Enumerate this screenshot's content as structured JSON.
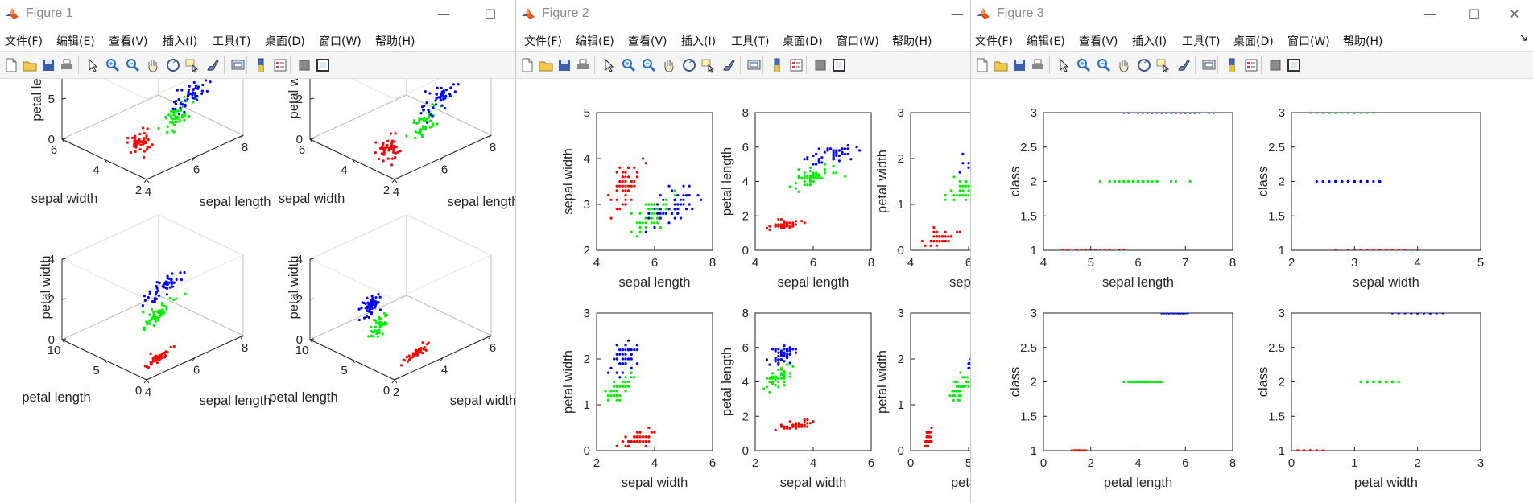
{
  "colors": {
    "setosa": "#ff0000",
    "versicolor": "#00ee00",
    "virginica": "#0000ff",
    "axis": "#222222",
    "box": "#bcbcbc"
  },
  "menu_labels": [
    "文件(F)",
    "编辑(E)",
    "查看(V)",
    "插入(I)",
    "工具(T)",
    "桌面(D)",
    "窗口(W)",
    "帮助(H)"
  ],
  "toolbar_icons": [
    "new-file-icon",
    "open-file-icon",
    "save-icon",
    "print-icon",
    "pointer-icon",
    "zoom-in-icon",
    "zoom-out-icon",
    "pan-icon",
    "rotate-3d-icon",
    "data-cursor-icon",
    "brush-icon",
    "link-plot-icon",
    "colorbar-icon",
    "legend-icon",
    "hide-plot-tools-icon",
    "show-plot-tools-icon"
  ],
  "windows": [
    {
      "title": "Figure 1",
      "controls": [
        "—",
        "☐"
      ],
      "plots": [
        {
          "type": "scatter3",
          "xlabel": "sepal length",
          "ylabel": "sepal width",
          "zlabel": "petal length",
          "xticks": [
            "4",
            "6",
            "8"
          ],
          "yticks": [
            "2",
            "4",
            "6"
          ],
          "zticks": [
            "0",
            "5",
            "10"
          ],
          "zvar": "pl"
        },
        {
          "type": "scatter3",
          "xlabel": "sepal length",
          "ylabel": "sepal width",
          "zlabel": "petal width",
          "xticks": [
            "4",
            "6",
            "8"
          ],
          "yticks": [
            "2",
            "4",
            "6"
          ],
          "zticks": [
            "0",
            "2",
            "4"
          ],
          "zvar": "pw"
        },
        {
          "type": "scatter3",
          "xlabel": "sepal length",
          "ylabel": "petal length",
          "zlabel": "petal width",
          "xticks": [
            "4",
            "6",
            "8"
          ],
          "yticks": [
            "0",
            "5",
            "10"
          ],
          "zticks": [
            "0",
            "2",
            "4"
          ],
          "zvar": "pw"
        },
        {
          "type": "scatter3",
          "xlabel": "sepal width",
          "ylabel": "petal length",
          "zlabel": "petal width",
          "xticks": [
            "2",
            "4",
            "6"
          ],
          "yticks": [
            "0",
            "5",
            "10"
          ],
          "zticks": [
            "0",
            "2",
            "4"
          ],
          "zvar": "pw"
        }
      ]
    },
    {
      "title": "Figure 2",
      "controls": [
        "—"
      ],
      "plots": [
        {
          "xlabel": "sepal length",
          "ylabel": "sepal width",
          "xticks": [
            "4",
            "6",
            "8"
          ],
          "yticks": [
            "2",
            "3",
            "4",
            "5"
          ],
          "xlim": [
            4,
            8
          ],
          "ylim": [
            2,
            5
          ]
        },
        {
          "xlabel": "sepal length",
          "ylabel": "petal length",
          "xticks": [
            "4",
            "6",
            "8"
          ],
          "yticks": [
            "0",
            "2",
            "4",
            "6",
            "8"
          ],
          "xlim": [
            4,
            8
          ],
          "ylim": [
            0,
            8
          ]
        },
        {
          "xlabel": "sepal l",
          "ylabel": "petal width",
          "xticks": [
            "4",
            "6"
          ],
          "yticks": [
            "0",
            "1",
            "2",
            "3"
          ],
          "xlim": [
            4,
            8
          ],
          "ylim": [
            0,
            3
          ]
        },
        {
          "xlabel": "sepal width",
          "ylabel": "petal width",
          "xticks": [
            "2",
            "4",
            "6"
          ],
          "yticks": [
            "0",
            "1",
            "2",
            "3"
          ],
          "xlim": [
            2,
            6
          ],
          "ylim": [
            0,
            3
          ]
        },
        {
          "xlabel": "sepal width",
          "ylabel": "petal length",
          "xticks": [
            "2",
            "4",
            "6"
          ],
          "yticks": [
            "0",
            "2",
            "4",
            "6",
            "8"
          ],
          "xlim": [
            2,
            6
          ],
          "ylim": [
            0,
            8
          ]
        },
        {
          "xlabel": "petal l",
          "ylabel": "petal width",
          "xticks": [
            "0",
            "5"
          ],
          "yticks": [
            "0",
            "1",
            "2",
            "3"
          ],
          "xlim": [
            0,
            10
          ],
          "ylim": [
            0,
            3
          ]
        }
      ]
    },
    {
      "title": "Figure 3",
      "controls": [
        "—",
        "☐",
        "✕"
      ],
      "dock_arrow": "↘",
      "plots": [
        {
          "xlabel": "sepal length",
          "ylabel": "class",
          "xticks": [
            "4",
            "5",
            "6",
            "7",
            "8"
          ],
          "yticks": [
            "1",
            "1.5",
            "2",
            "2.5",
            "3"
          ],
          "xlim": [
            4,
            8
          ],
          "ylim": [
            1,
            3
          ]
        },
        {
          "xlabel": "sepal width",
          "ylabel": "class",
          "xticks": [
            "2",
            "3",
            "4",
            "5"
          ],
          "yticks": [
            "1",
            "1.5",
            "2",
            "2.5",
            "3"
          ],
          "xlim": [
            2,
            5
          ],
          "ylim": [
            1,
            3
          ]
        },
        {
          "xlabel": "petal length",
          "ylabel": "class",
          "xticks": [
            "0",
            "2",
            "4",
            "6",
            "8"
          ],
          "yticks": [
            "1",
            "1.5",
            "2",
            "2.5",
            "3"
          ],
          "xlim": [
            0,
            8
          ],
          "ylim": [
            1,
            3
          ]
        },
        {
          "xlabel": "petal width",
          "ylabel": "class",
          "xticks": [
            "0",
            "1",
            "2",
            "3"
          ],
          "yticks": [
            "1",
            "1.5",
            "2",
            "2.5",
            "3"
          ],
          "xlim": [
            0,
            3
          ],
          "ylim": [
            1,
            3
          ]
        }
      ]
    }
  ]
}
